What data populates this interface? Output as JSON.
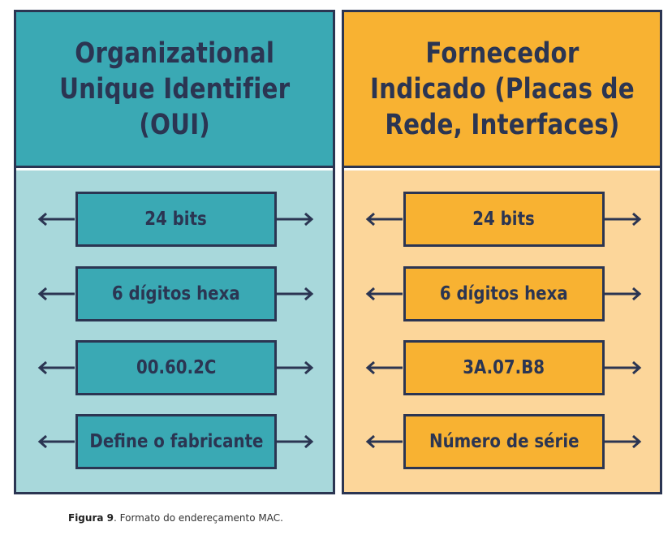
{
  "colors": {
    "outline": "#2b3552",
    "teal": "#3aa9b4",
    "teal_light": "#a8d8db",
    "orange": "#f8b232",
    "orange_light": "#fcd69a"
  },
  "left_panel": {
    "title_lines": [
      "Organizational",
      "Unique Identifier",
      "(OUI)"
    ],
    "rows": [
      "24 bits",
      "6 dígitos hexa",
      "00.60.2C",
      "Define o fabricante"
    ]
  },
  "right_panel": {
    "title_lines": [
      "Fornecedor",
      "Indicado (Placas de",
      "Rede, Interfaces)"
    ],
    "rows": [
      "24 bits",
      "6 dígitos hexa",
      "3A.07.B8",
      "Número de série"
    ]
  },
  "caption": {
    "label": "Figura 9",
    "text": ". Formato do endereçamento MAC."
  },
  "icons": {
    "left": "arrow-left-icon",
    "right": "arrow-right-icon"
  }
}
